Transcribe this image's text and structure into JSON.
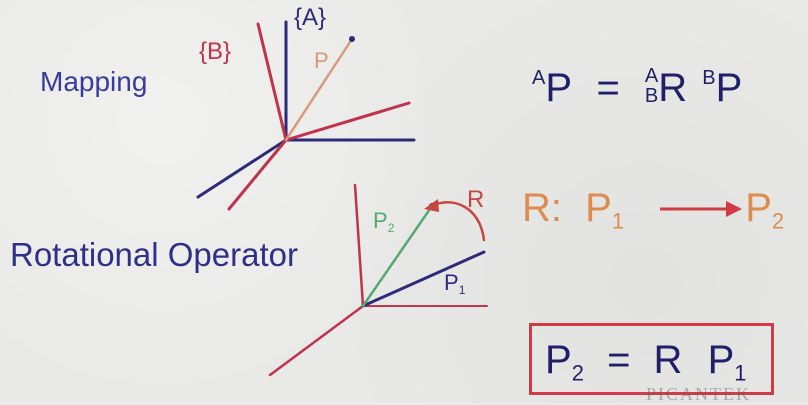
{
  "labels": {
    "mapping": "Mapping",
    "rotational_operator": "Rotational Operator",
    "frame_b": "{B}",
    "frame_a": "{A}",
    "p_mapping": "P",
    "p_two_base": "P",
    "p_two_sub": "2",
    "r_arc": "R",
    "p_one_base": "P",
    "p_one_sub": "1"
  },
  "equations": {
    "mapping": {
      "lhs_sup": "A",
      "lhs_base": "P",
      "eq": "=",
      "rot_sup": "A",
      "rot_sub": "B",
      "rot_base": "R",
      "vec_sup": "B",
      "vec_base": "P"
    },
    "rotation_operator": {
      "r": "R:",
      "from_base": "P",
      "from_sub": "1",
      "to_base": "P",
      "to_sub": "2"
    },
    "boxed": {
      "lhs_base": "P",
      "lhs_sub": "2",
      "eq": "=",
      "r": "R",
      "rhs_base": "P",
      "rhs_sub": "1"
    }
  },
  "watermark": "PICANTEK",
  "colors": {
    "background": "#e9e9e7",
    "frame_a_axis": "#2b2b7a",
    "frame_b_axis": "#c0334d",
    "vector_p": "#d89a78",
    "rotated_vector": "#55a870",
    "box_border": "#d43a45",
    "rotation_text": "#dc8c4f",
    "equation_text": "#1f1f6a"
  }
}
